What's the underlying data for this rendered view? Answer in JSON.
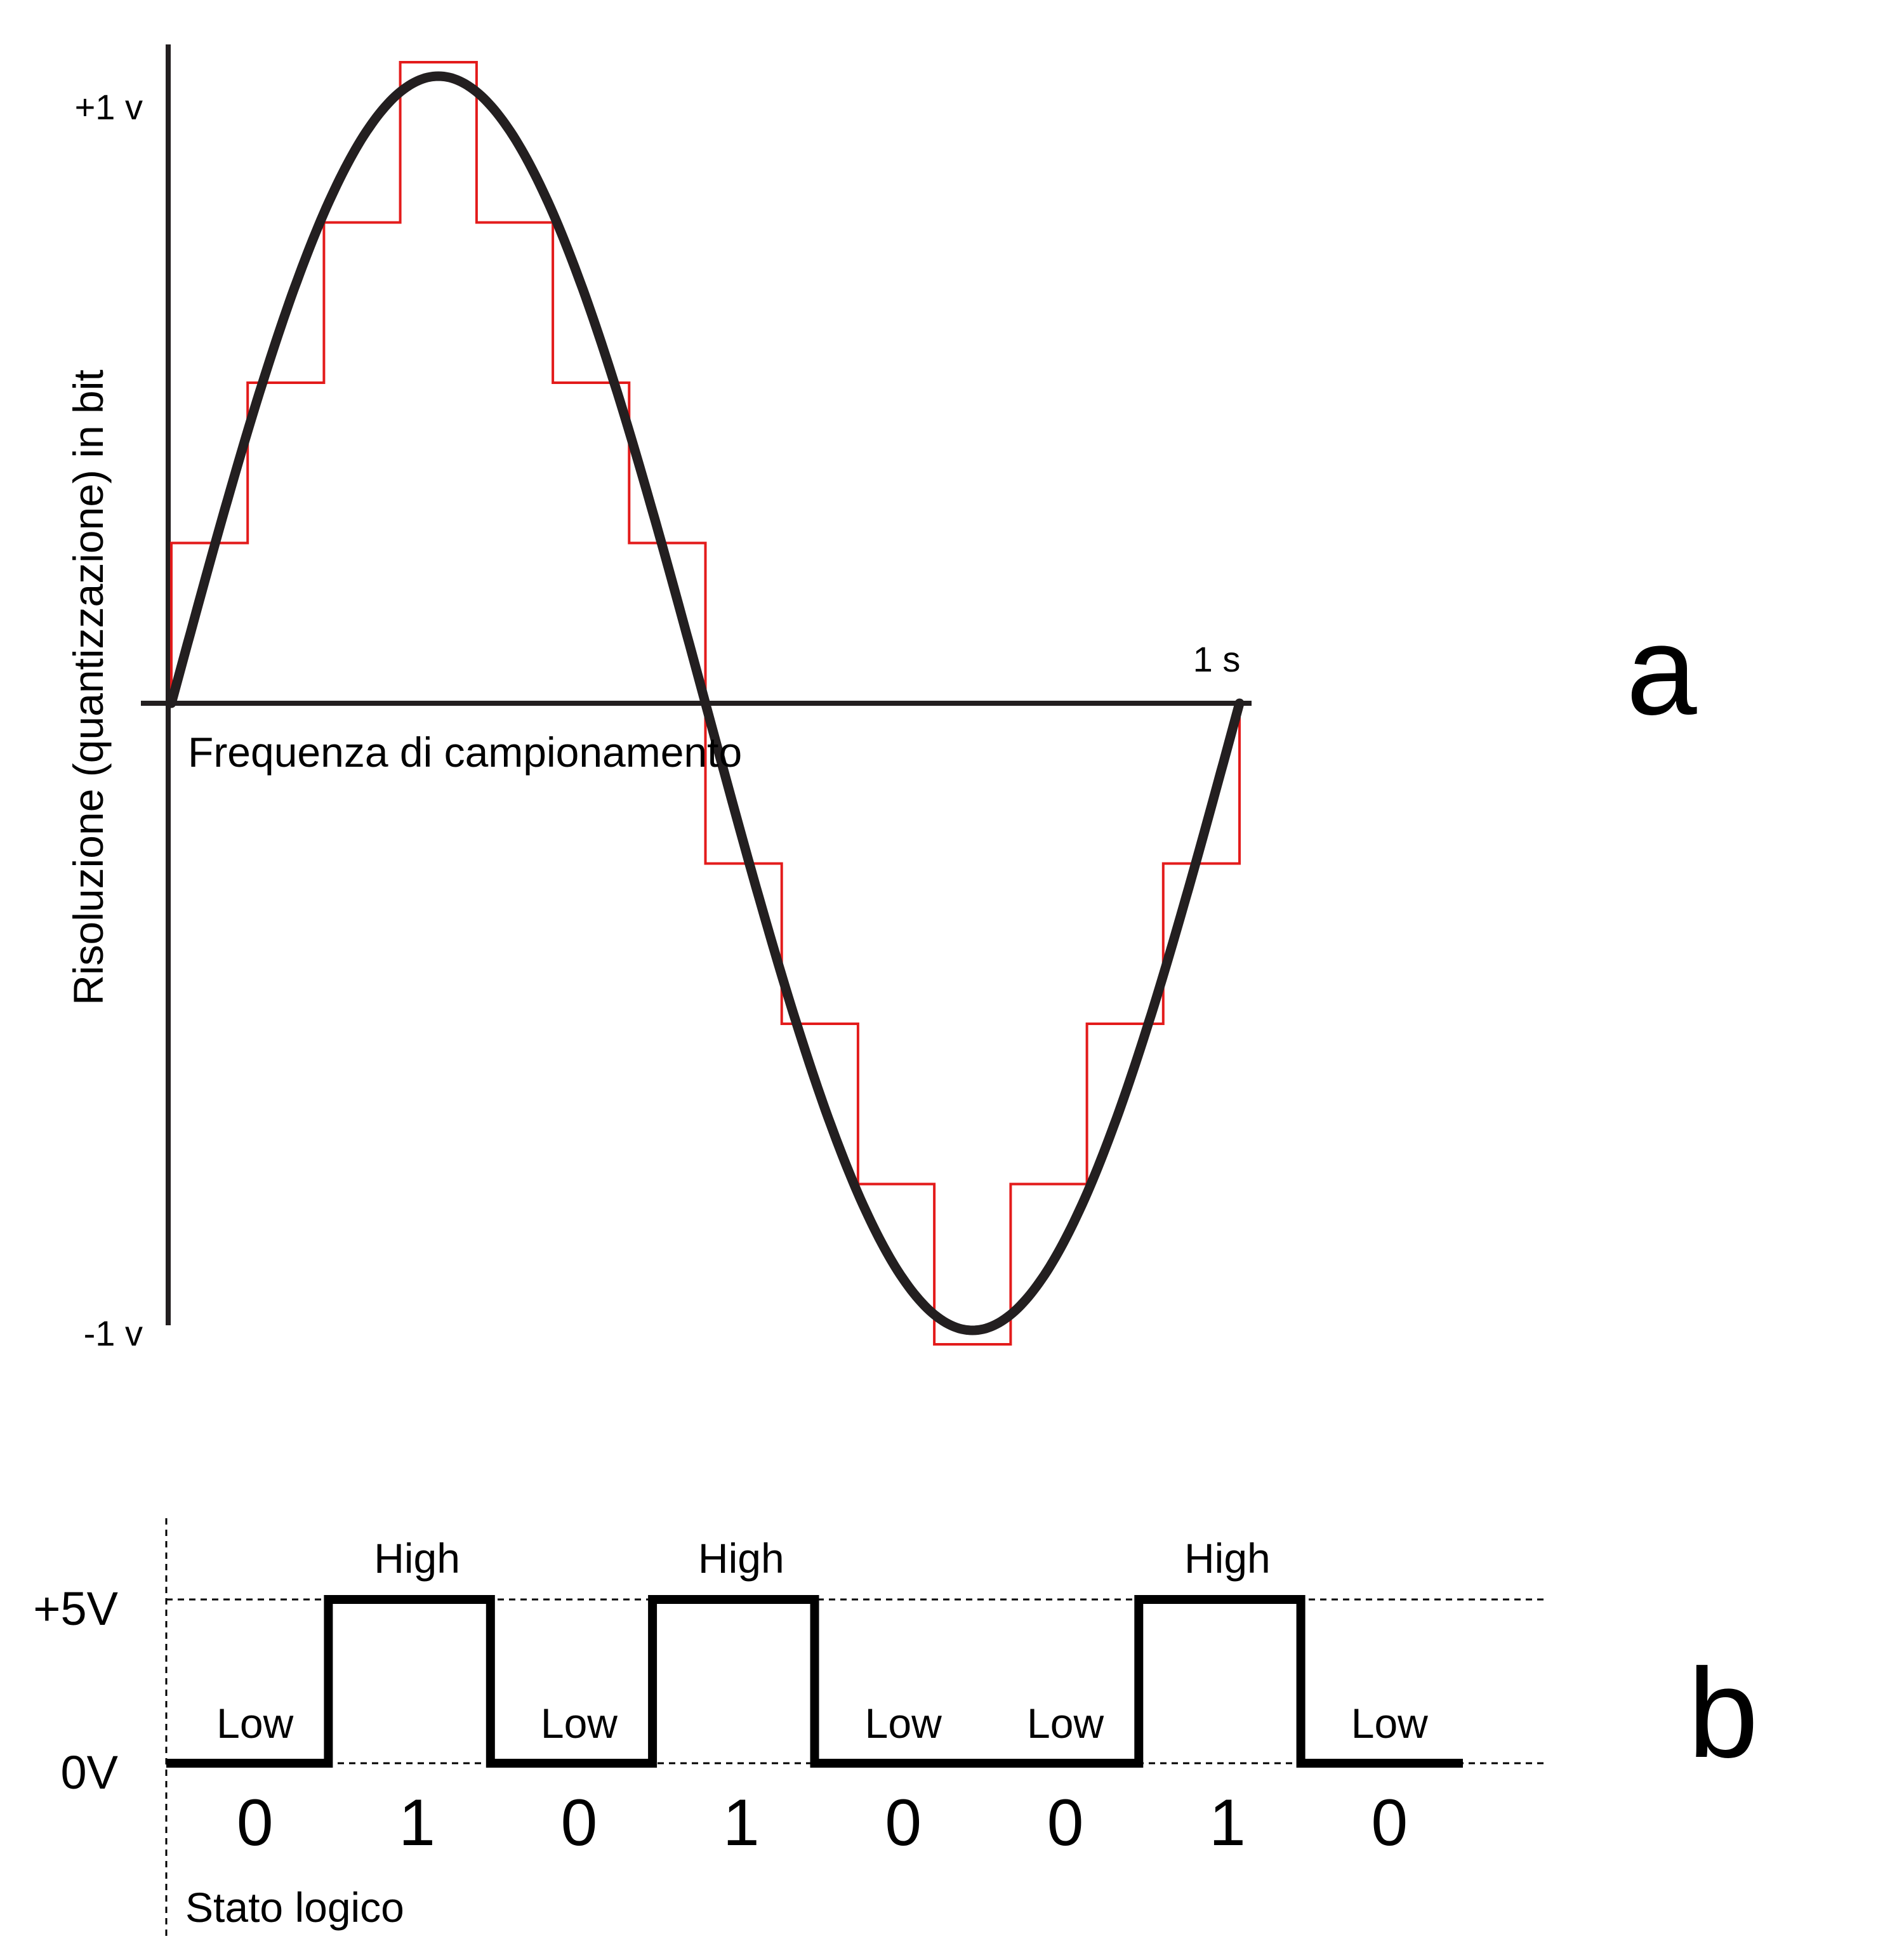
{
  "panel_a": {
    "letter": "a",
    "y_axis_label": "Risoluzione (quantizzazione) in bit",
    "x_axis_label": "Frequenza di campionamento",
    "tick_top": "+1 v",
    "tick_bottom": "-1 v",
    "tick_end": "1 s",
    "signal": {
      "type": "sine",
      "amplitude_v": 1,
      "period_s": 1,
      "color": "#231f20"
    },
    "quantized": {
      "color": "#e31b1b",
      "levels": [
        0.25,
        0.5,
        0.75,
        1,
        0.75,
        0.5,
        0.25,
        -0.25,
        -0.5,
        -0.75,
        -1,
        -0.75,
        -0.5,
        -0.25
      ]
    }
  },
  "panel_b": {
    "letter": "b",
    "voltage_high": "+5V",
    "voltage_low": "0V",
    "caption": "Stato logico",
    "bits": [
      "0",
      "1",
      "0",
      "1",
      "0",
      "0",
      "1",
      "0"
    ],
    "states": [
      "Low",
      "High",
      "Low",
      "High",
      "Low",
      "Low",
      "High",
      "Low"
    ]
  }
}
